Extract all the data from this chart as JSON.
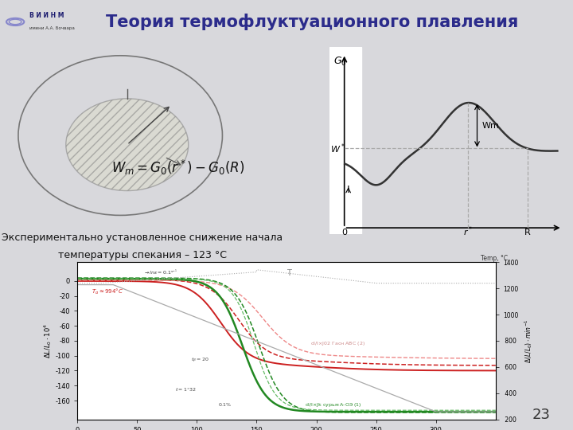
{
  "title": "Теория термофлуктуационного плавления",
  "title_color": "#2B2B8B",
  "title_fontsize": 15,
  "bg_color": "#D8D8DC",
  "slide_bg": "#E4E4E8",
  "exp_text_line1": "Экспериментально установленное снижение начала",
  "exp_text_line2": "температуры спекания – 123 °С",
  "page_number": "23",
  "curve_color": "#333333",
  "dashed_color": "#AAAAAA",
  "white_rect_color": "#FFFFFF"
}
